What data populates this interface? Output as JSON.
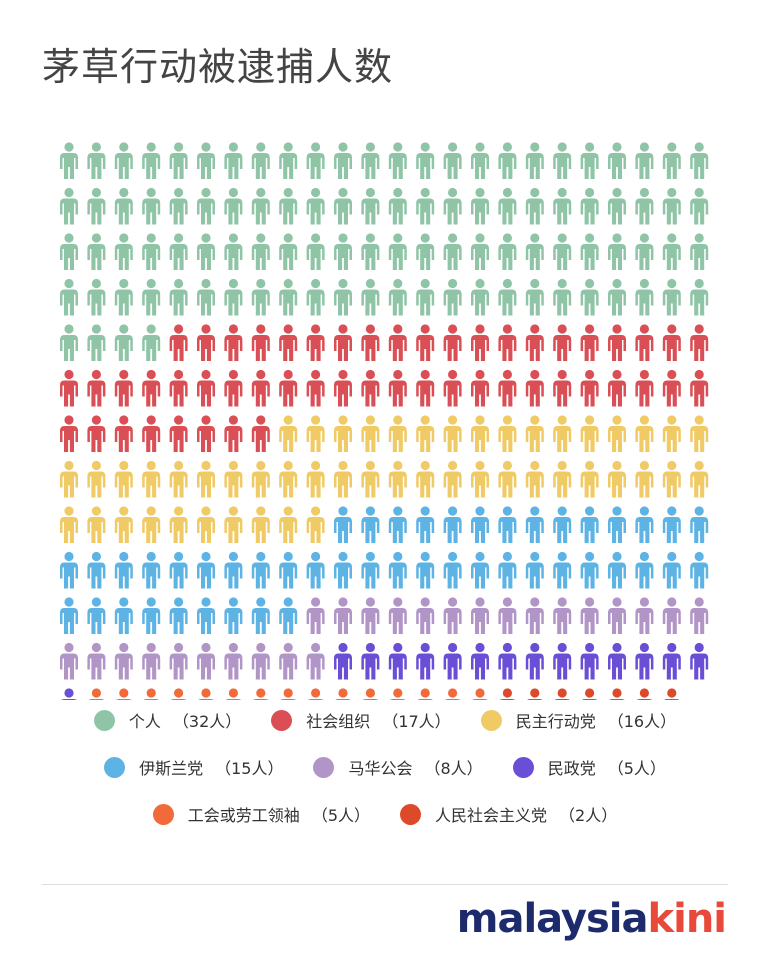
{
  "title": "茅草行动被逮捕人数",
  "chart_data": {
    "type": "waffle",
    "title": "茅草行动被逮捕人数",
    "columns": 24,
    "categories": [
      {
        "name": "个人",
        "count_label": "（32人）",
        "value": 32,
        "units": 100,
        "color": "#8fc5a6"
      },
      {
        "name": "社会组织",
        "count_label": "（17人）",
        "value": 17,
        "units": 52,
        "color": "#d94f55"
      },
      {
        "name": "民主行动党",
        "count_label": "（16人）",
        "value": 16,
        "units": 50,
        "color": "#f0ca65"
      },
      {
        "name": "伊斯兰党",
        "count_label": "（15人）",
        "value": 15,
        "units": 47,
        "color": "#5db3e3"
      },
      {
        "name": "马华公会",
        "count_label": "（8人）",
        "value": 8,
        "units": 25,
        "color": "#b295c7"
      },
      {
        "name": "民政党",
        "count_label": "（5人）",
        "value": 5,
        "units": 15,
        "color": "#6a4fd6"
      },
      {
        "name": "工会或劳工领袖",
        "count_label": "（5人）",
        "value": 5,
        "units": 15,
        "color": "#f26a3a"
      },
      {
        "name": "人民社会主义党",
        "count_label": "（2人）",
        "value": 2,
        "units": 7,
        "color": "#dd4a2a"
      }
    ]
  },
  "legend_rows": [
    [
      0,
      1,
      2
    ],
    [
      3,
      4,
      5
    ],
    [
      6,
      7
    ]
  ],
  "logo": {
    "part1": "malaysia",
    "part2": "kini"
  }
}
